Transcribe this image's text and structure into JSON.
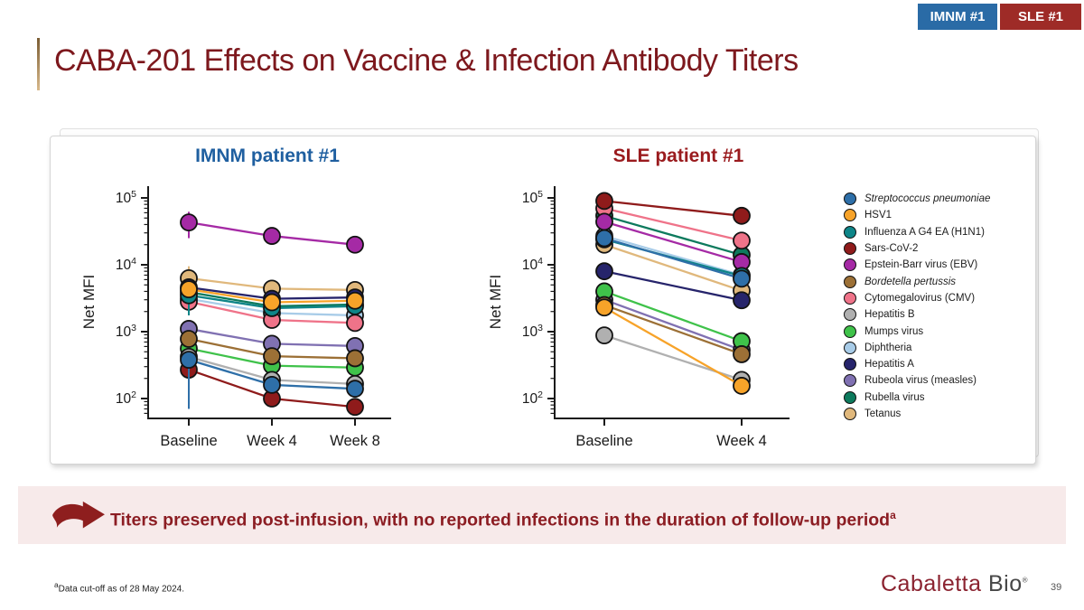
{
  "tabs": [
    {
      "label": "IMNM #1",
      "color": "#2a6ba6"
    },
    {
      "label": "SLE #1",
      "color": "#9e2b27"
    }
  ],
  "title": "CABA-201 Effects on Vaccine & Infection Antibody Titers",
  "chart_data": [
    {
      "type": "line",
      "title": "IMNM patient #1",
      "title_color": "#1f5fa0",
      "ylabel": "Net MFI",
      "yscale": "log",
      "ylim": [
        50,
        160000
      ],
      "y_ticks": [
        100,
        1000,
        10000,
        100000
      ],
      "grid": false,
      "categories": [
        "Baseline",
        "Week 4",
        "Week 8"
      ],
      "series": [
        {
          "name": "Streptococcus pneumoniae",
          "italic": true,
          "color": "#2e6fa8",
          "values": [
            380,
            160,
            140
          ],
          "baseline_error": [
            70,
            380
          ]
        },
        {
          "name": "HSV1",
          "italic": false,
          "color": "#f7a329",
          "values": [
            4300,
            2750,
            2900
          ]
        },
        {
          "name": "Influenza A G4 EA (H1N1)",
          "italic": false,
          "color": "#0e8588",
          "values": [
            3500,
            2250,
            2400
          ],
          "baseline_error": [
            1750,
            3500
          ]
        },
        {
          "name": "Sars-CoV-2",
          "italic": false,
          "color": "#8f1b1b",
          "values": [
            270,
            100,
            75
          ],
          "baseline_error": [
            90,
            270
          ]
        },
        {
          "name": "Epstein-Barr virus (EBV)",
          "italic": false,
          "color": "#a52aa5",
          "values": [
            43000,
            27000,
            20000
          ],
          "baseline_error": [
            25000,
            62000
          ]
        },
        {
          "name": "Bordetella pertussis",
          "italic": true,
          "color": "#9c7036",
          "values": [
            780,
            430,
            400
          ]
        },
        {
          "name": "Cytomegalovirus (CMV)",
          "italic": false,
          "color": "#ef7389",
          "values": [
            2800,
            1500,
            1350
          ]
        },
        {
          "name": "Hepatitis B",
          "italic": false,
          "color": "#b0b0b0",
          "values": [
            420,
            190,
            165
          ]
        },
        {
          "name": "Mumps virus",
          "italic": false,
          "color": "#3fc24a",
          "values": [
            560,
            310,
            290
          ],
          "baseline_error": [
            160,
            560
          ]
        },
        {
          "name": "Diphtheria",
          "italic": false,
          "color": "#a8cce8",
          "values": [
            3100,
            1900,
            1750
          ]
        },
        {
          "name": "Hepatitis A",
          "italic": false,
          "color": "#26246b",
          "values": [
            4600,
            3100,
            3250
          ]
        },
        {
          "name": "Rubeola virus (measles)",
          "italic": false,
          "color": "#8071b2",
          "values": [
            1100,
            660,
            610
          ]
        },
        {
          "name": "Rubella virus",
          "italic": false,
          "color": "#0d7a5d",
          "values": [
            3900,
            2400,
            2550
          ]
        },
        {
          "name": "Tetanus",
          "italic": false,
          "color": "#e0b87c",
          "values": [
            6300,
            4400,
            4200
          ],
          "baseline_error": [
            4400,
            9500
          ]
        }
      ]
    },
    {
      "type": "line",
      "title": "SLE patient #1",
      "title_color": "#9a1b1e",
      "ylabel": "Net MFI",
      "yscale": "log",
      "ylim": [
        50,
        160000
      ],
      "y_ticks": [
        100,
        1000,
        10000,
        100000
      ],
      "grid": false,
      "categories": [
        "Baseline",
        "Week 4"
      ],
      "series": [
        {
          "name": "Streptococcus pneumoniae",
          "italic": true,
          "color": "#2e6fa8",
          "values": [
            25000,
            6200
          ]
        },
        {
          "name": "HSV1",
          "italic": false,
          "color": "#f7a329",
          "values": [
            2300,
            155
          ]
        },
        {
          "name": "Influenza A G4 EA (H1N1)",
          "italic": false,
          "color": "#0e8588",
          "values": [
            24000,
            6800
          ]
        },
        {
          "name": "Sars-CoV-2",
          "italic": false,
          "color": "#8f1b1b",
          "values": [
            90000,
            54000
          ]
        },
        {
          "name": "Epstein-Barr virus (EBV)",
          "italic": false,
          "color": "#a52aa5",
          "values": [
            44000,
            11000
          ]
        },
        {
          "name": "Bordetella pertussis",
          "italic": true,
          "color": "#9c7036",
          "values": [
            2500,
            460
          ]
        },
        {
          "name": "Cytomegalovirus (CMV)",
          "italic": false,
          "color": "#ef7389",
          "values": [
            70000,
            23000
          ]
        },
        {
          "name": "Hepatitis B",
          "italic": false,
          "color": "#b0b0b0",
          "values": [
            880,
            190
          ]
        },
        {
          "name": "Mumps virus",
          "italic": false,
          "color": "#3fc24a",
          "values": [
            4000,
            720
          ]
        },
        {
          "name": "Diphtheria",
          "italic": false,
          "color": "#a8cce8",
          "values": [
            27000,
            7000
          ]
        },
        {
          "name": "Hepatitis A",
          "italic": false,
          "color": "#26246b",
          "values": [
            8000,
            2950
          ]
        },
        {
          "name": "Rubeola virus (measles)",
          "italic": false,
          "color": "#8071b2",
          "values": [
            3000,
            530
          ]
        },
        {
          "name": "Rubella virus",
          "italic": false,
          "color": "#0d7a5d",
          "values": [
            54000,
            14000
          ]
        },
        {
          "name": "Tetanus",
          "italic": false,
          "color": "#e0b87c",
          "values": [
            20000,
            4100
          ]
        }
      ]
    }
  ],
  "callout": {
    "text": "Titers preserved post-infusion, with no reported infections in the duration of follow-up period",
    "superscript": "a",
    "bg": "#f7eaea",
    "color": "#8c1d23",
    "arrow_color": "#8e1e1e"
  },
  "footnote": {
    "marker": "a",
    "text": "Data cut-off as of 28 May 2024."
  },
  "logo": {
    "brand": "Cabaletta",
    "suffix": "Bio",
    "registered": "®"
  },
  "page_number": "39"
}
